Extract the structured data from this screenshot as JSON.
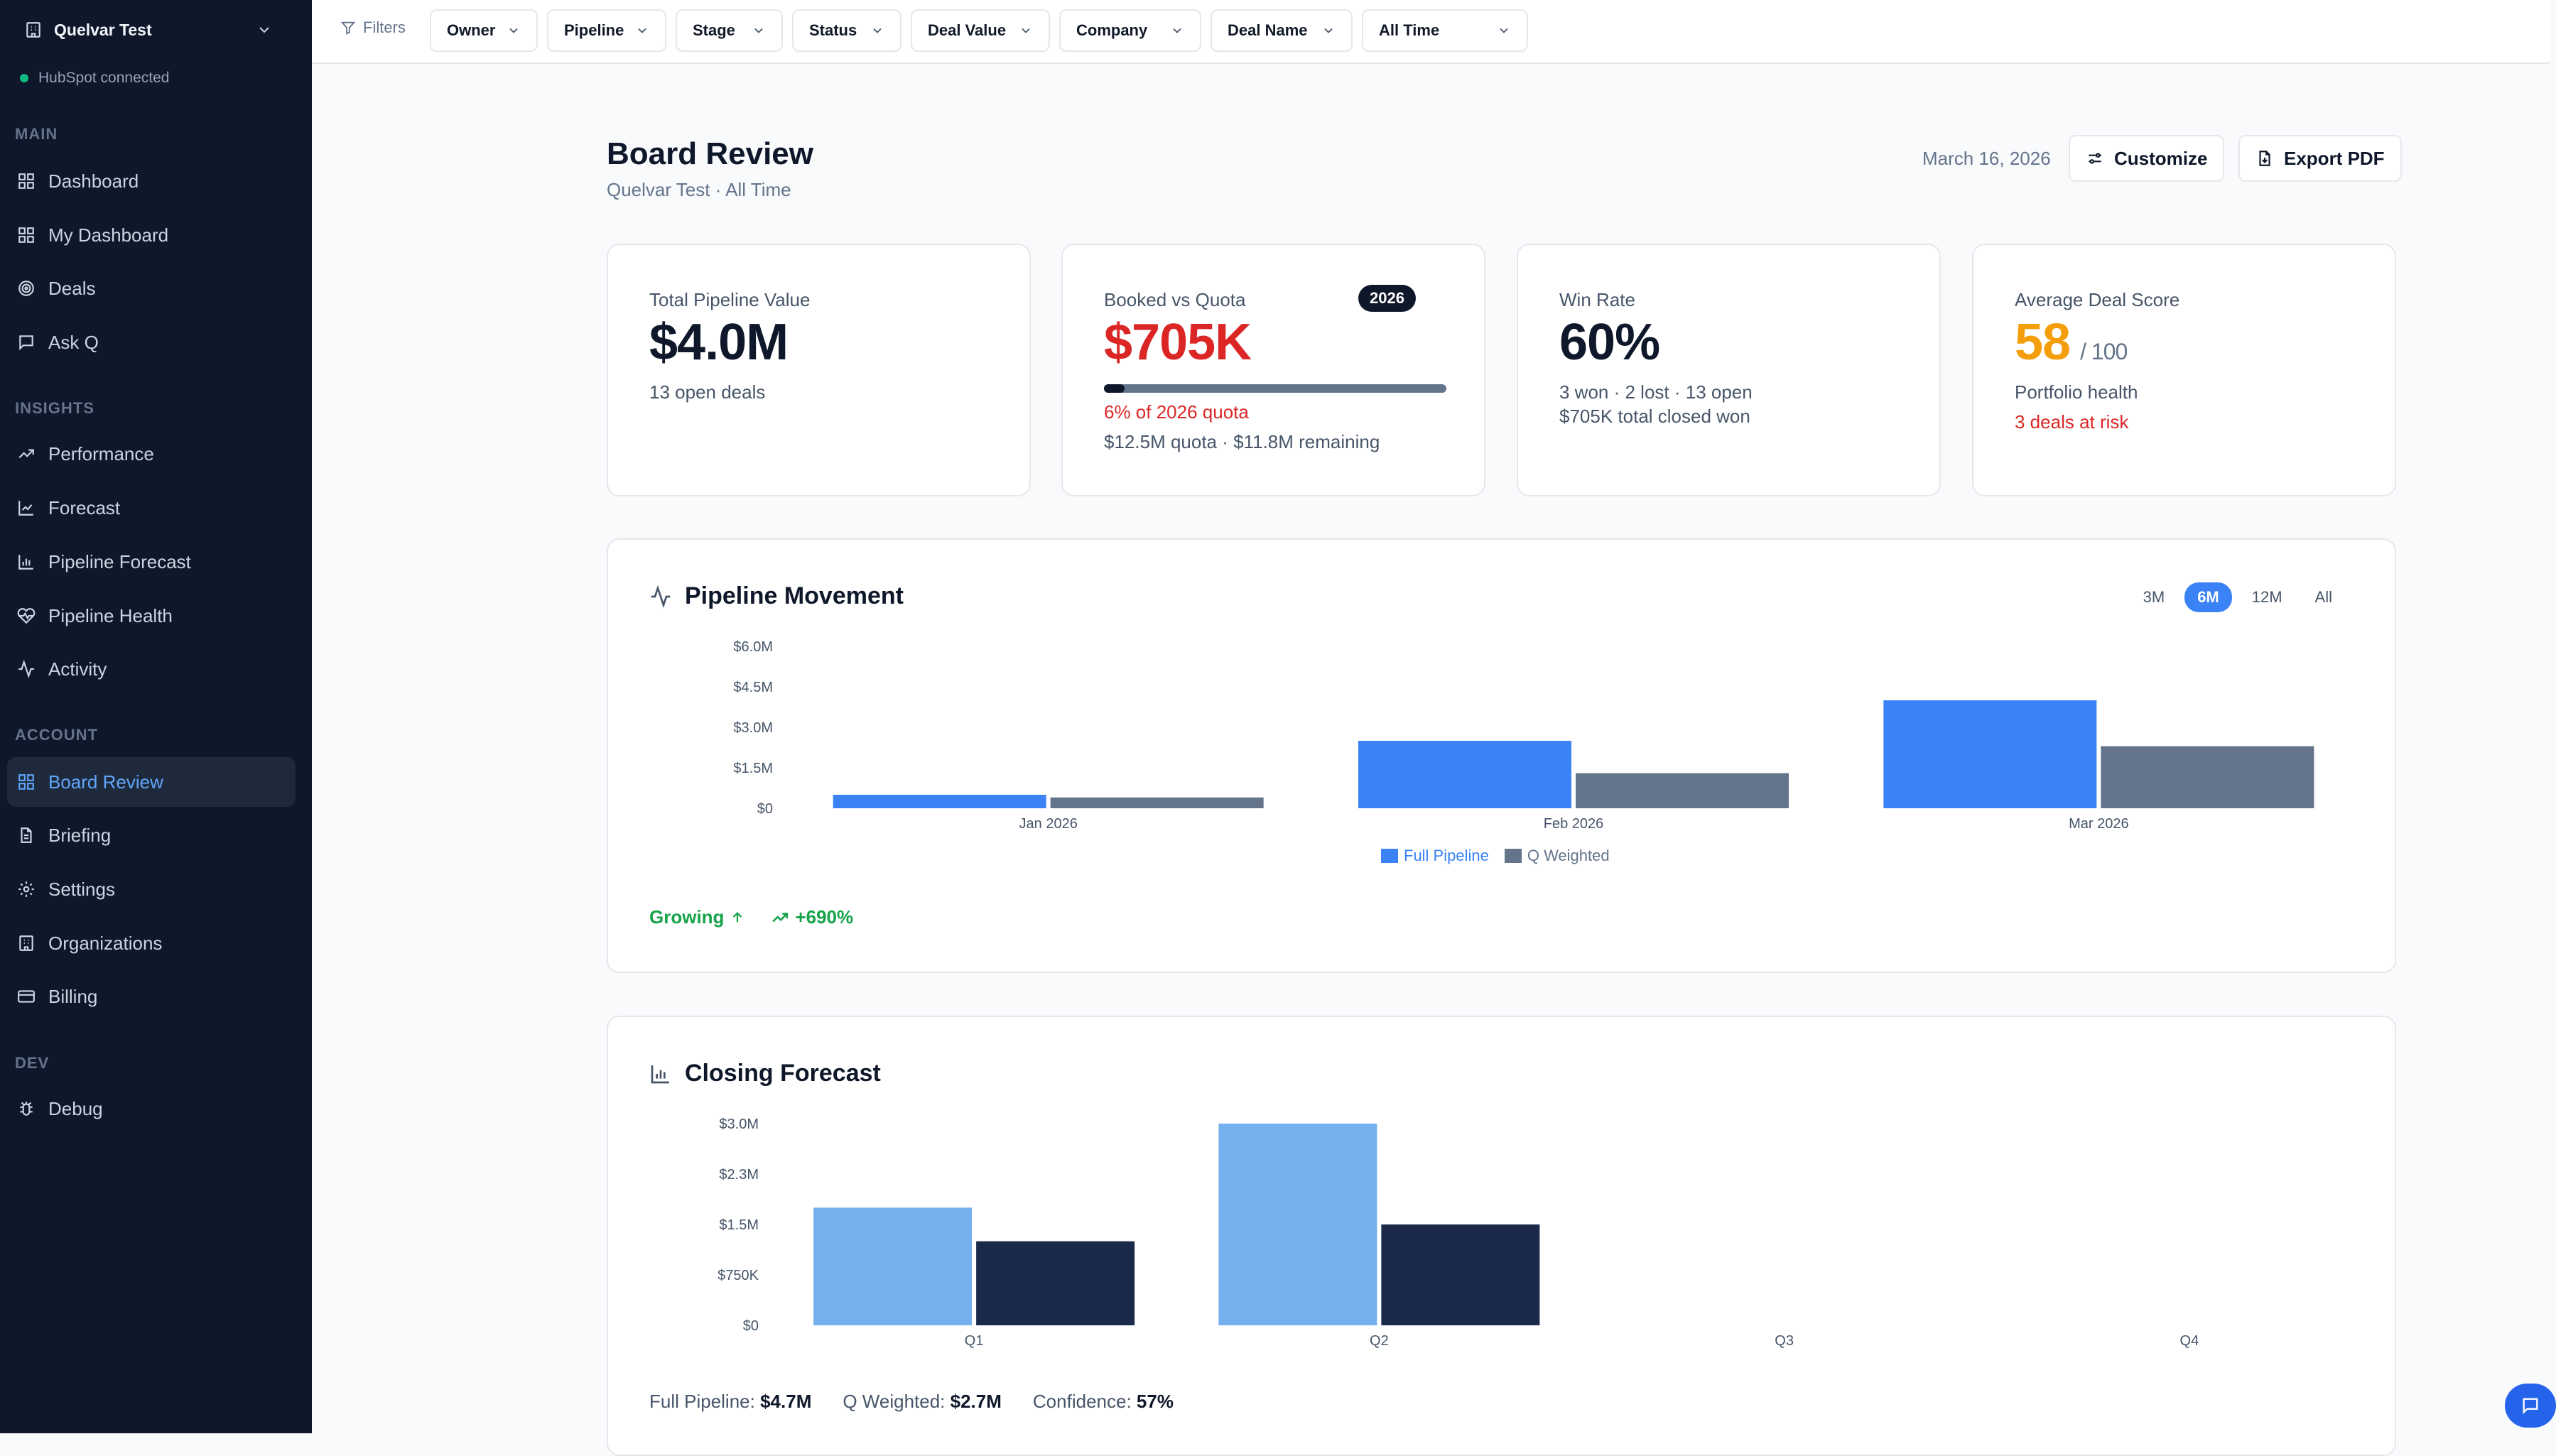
{
  "sidebar": {
    "workspace": "Quelvar Test",
    "connection": "HubSpot connected",
    "sections": {
      "main": "MAIN",
      "insights": "INSIGHTS",
      "account": "ACCOUNT",
      "dev": "DEV"
    },
    "items": {
      "dashboard": "Dashboard",
      "my_dashboard": "My Dashboard",
      "deals": "Deals",
      "ask_q": "Ask Q",
      "performance": "Performance",
      "forecast": "Forecast",
      "pipeline_forecast": "Pipeline Forecast",
      "pipeline_health": "Pipeline Health",
      "activity": "Activity",
      "board_review": "Board Review",
      "briefing": "Briefing",
      "settings": "Settings",
      "organizations": "Organizations",
      "billing": "Billing",
      "debug": "Debug"
    },
    "active": "board_review"
  },
  "filters": {
    "label": "Filters",
    "owner": "Owner",
    "pipeline": "Pipeline",
    "stage": "Stage",
    "status": "Status",
    "deal_value": "Deal Value",
    "company": "Company",
    "deal_name": "Deal Name",
    "time": "All Time"
  },
  "header": {
    "title": "Board Review",
    "subtitle": "Quelvar Test · All Time",
    "date": "March 16, 2026",
    "customize": "Customize",
    "export": "Export PDF"
  },
  "kpis": {
    "pipeline": {
      "label": "Total Pipeline Value",
      "value": "$4.0M",
      "sub": "13 open deals"
    },
    "booked": {
      "label": "Booked vs Quota",
      "badge": "2026",
      "value": "$705K",
      "progress": 0.06,
      "pct_text": "6% of 2026 quota",
      "sub": "$12.5M quota · $11.8M remaining"
    },
    "winrate": {
      "label": "Win Rate",
      "value": "60%",
      "sub1": "3 won · 2 lost · 13 open",
      "sub2": "$705K total closed won"
    },
    "score": {
      "label": "Average Deal Score",
      "value": "58",
      "denominator": "/ 100",
      "sub": "Portfolio health",
      "risk": "3 deals at risk"
    }
  },
  "colors": {
    "accent": "#3b82f6",
    "full_pipeline": "#3b82f6",
    "q_weighted": "#64748b",
    "forecast_full": "#74b0ee",
    "forecast_weighted": "#1b2a4a",
    "danger": "#dc2626",
    "warning": "#f59e0b",
    "success": "#16a34a"
  },
  "movement": {
    "title": "Pipeline Movement",
    "ranges": [
      "3M",
      "6M",
      "12M",
      "All"
    ],
    "active_range": "6M",
    "trend_label": "Growing",
    "trend_value": "+690%"
  },
  "forecast": {
    "title": "Closing Forecast",
    "full_label": "Full Pipeline:",
    "full_value": "$4.7M",
    "weighted_label": "Q Weighted:",
    "weighted_value": "$2.7M",
    "confidence_label": "Confidence:",
    "confidence_value": "57%"
  },
  "chart_data": [
    {
      "type": "bar",
      "title": "Pipeline Movement",
      "categories": [
        "Jan 2026",
        "Feb 2026",
        "Mar 2026"
      ],
      "series": [
        {
          "name": "Full Pipeline",
          "values": [
            0.5,
            2.5,
            4.0
          ]
        },
        {
          "name": "Q Weighted",
          "values": [
            0.4,
            1.3,
            2.3
          ]
        }
      ],
      "yticks": [
        "$0",
        "$1.5M",
        "$3.0M",
        "$4.5M",
        "$6.0M"
      ],
      "ylim": [
        0,
        6.0
      ],
      "legend": "bottom-center"
    },
    {
      "type": "bar",
      "title": "Closing Forecast",
      "categories": [
        "Q1",
        "Q2",
        "Q3",
        "Q4"
      ],
      "series": [
        {
          "values": [
            1.75,
            3.0,
            0,
            0
          ]
        },
        {
          "values": [
            1.25,
            1.5,
            0,
            0
          ]
        }
      ],
      "yticks": [
        "$0",
        "$750K",
        "$1.5M",
        "$2.3M",
        "$3.0M"
      ],
      "ylim": [
        0,
        3.0
      ],
      "legend": "none"
    }
  ]
}
